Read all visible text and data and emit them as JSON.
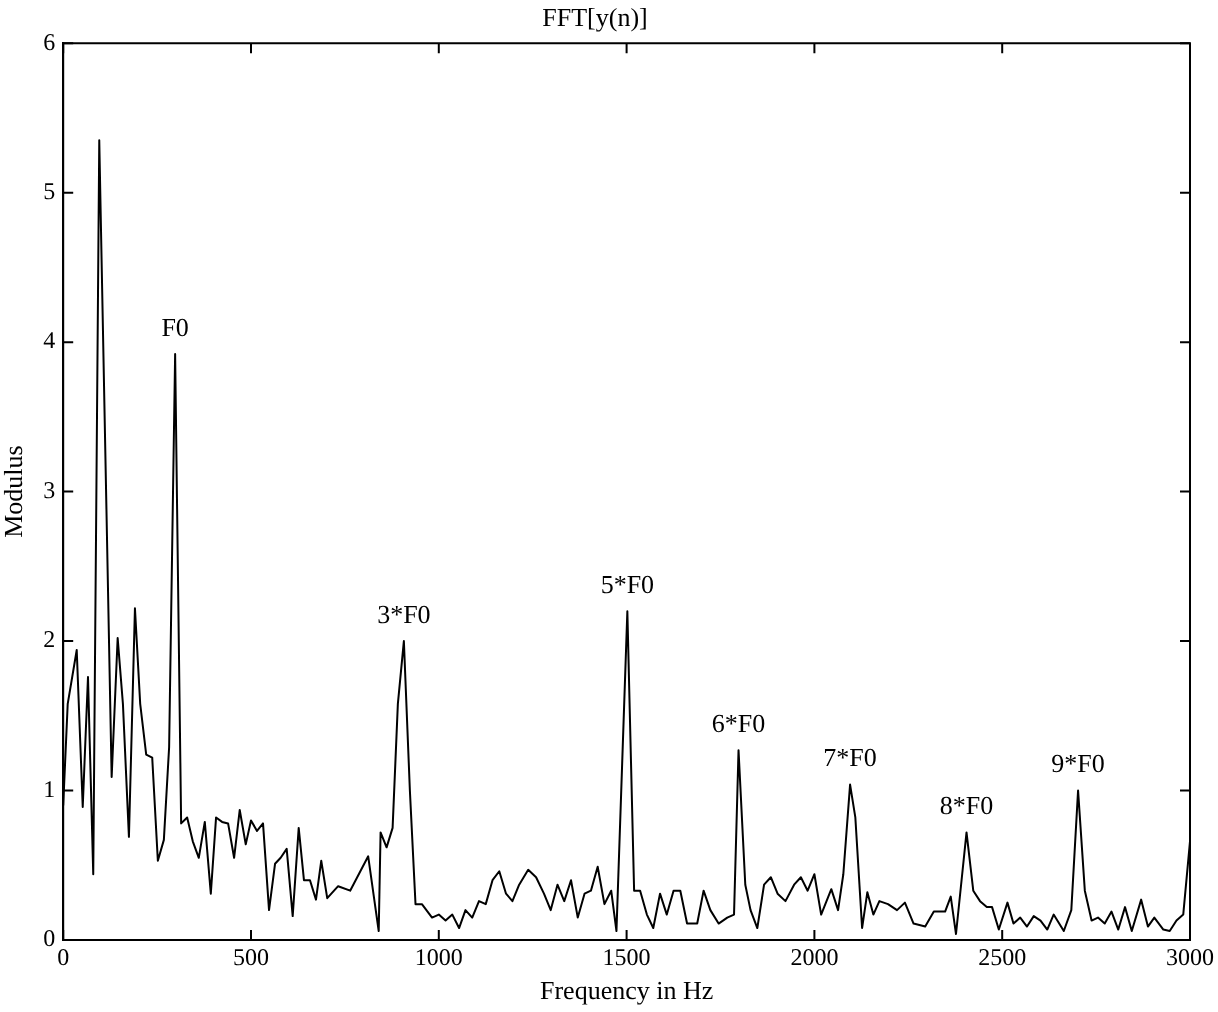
{
  "chart_data": {
    "type": "line",
    "title": "FFT[y(n)]",
    "xlabel": "Frequency in Hz",
    "ylabel": "Modulus",
    "xlim": [
      0,
      3000
    ],
    "xticks": [
      0,
      500,
      1000,
      1500,
      2000,
      2500,
      3000
    ],
    "ylim": [
      0,
      6
    ],
    "yticks": [
      0,
      1,
      2,
      3,
      4,
      5,
      6
    ],
    "grid": false,
    "legend": false,
    "marker": "none",
    "line_style": "solid",
    "series": [
      {
        "color": "#000000",
        "x": [
          0,
          12,
          36,
          52,
          66,
          80,
          96,
          129,
          145,
          159,
          175,
          191,
          205,
          221,
          237,
          252,
          268,
          282,
          298,
          314,
          330,
          345,
          361,
          377,
          393,
          407,
          423,
          439,
          455,
          470,
          486,
          500,
          516,
          532,
          548,
          564,
          579,
          595,
          611,
          627,
          641,
          657,
          673,
          687,
          703,
          732,
          764,
          812,
          840,
          845,
          861,
          877,
          891,
          907,
          923,
          938,
          955,
          982,
          1000,
          1018,
          1036,
          1054,
          1071,
          1089,
          1107,
          1125,
          1143,
          1161,
          1179,
          1196,
          1214,
          1238,
          1259,
          1280,
          1298,
          1316,
          1334,
          1352,
          1370,
          1388,
          1405,
          1423,
          1441,
          1459,
          1473,
          1502,
          1520,
          1536,
          1554,
          1571,
          1589,
          1607,
          1625,
          1643,
          1661,
          1688,
          1705,
          1723,
          1745,
          1768,
          1786,
          1798,
          1816,
          1830,
          1848,
          1866,
          1884,
          1902,
          1923,
          1946,
          1964,
          1982,
          2000,
          2018,
          2045,
          2063,
          2077,
          2095,
          2109,
          2127,
          2141,
          2157,
          2173,
          2196,
          2220,
          2241,
          2264,
          2295,
          2318,
          2348,
          2363,
          2377,
          2405,
          2423,
          2441,
          2459,
          2473,
          2491,
          2514,
          2530,
          2548,
          2566,
          2584,
          2602,
          2620,
          2637,
          2664,
          2684,
          2702,
          2720,
          2738,
          2755,
          2773,
          2791,
          2809,
          2827,
          2845,
          2870,
          2888,
          2905,
          2929,
          2946,
          2964,
          2982,
          3000
        ],
        "values": [
          0.9,
          1.58,
          1.94,
          0.89,
          1.76,
          0.44,
          5.35,
          1.09,
          2.02,
          1.58,
          0.69,
          2.22,
          1.58,
          1.24,
          1.22,
          0.53,
          0.67,
          1.29,
          3.92,
          0.78,
          0.82,
          0.66,
          0.55,
          0.79,
          0.31,
          0.82,
          0.79,
          0.78,
          0.55,
          0.87,
          0.64,
          0.8,
          0.73,
          0.78,
          0.2,
          0.51,
          0.55,
          0.61,
          0.16,
          0.75,
          0.4,
          0.4,
          0.27,
          0.53,
          0.28,
          0.36,
          0.33,
          0.56,
          0.06,
          0.72,
          0.62,
          0.75,
          1.58,
          2.0,
          1.0,
          0.24,
          0.24,
          0.15,
          0.17,
          0.13,
          0.17,
          0.08,
          0.2,
          0.15,
          0.26,
          0.24,
          0.4,
          0.46,
          0.31,
          0.26,
          0.37,
          0.47,
          0.42,
          0.31,
          0.2,
          0.37,
          0.26,
          0.4,
          0.15,
          0.31,
          0.33,
          0.49,
          0.24,
          0.33,
          0.06,
          2.2,
          0.33,
          0.33,
          0.17,
          0.08,
          0.31,
          0.17,
          0.33,
          0.33,
          0.11,
          0.11,
          0.33,
          0.2,
          0.11,
          0.15,
          0.17,
          1.27,
          0.37,
          0.2,
          0.08,
          0.37,
          0.42,
          0.31,
          0.26,
          0.37,
          0.42,
          0.33,
          0.44,
          0.17,
          0.34,
          0.2,
          0.44,
          1.04,
          0.82,
          0.08,
          0.32,
          0.17,
          0.26,
          0.24,
          0.2,
          0.25,
          0.11,
          0.09,
          0.19,
          0.19,
          0.29,
          0.04,
          0.72,
          0.33,
          0.26,
          0.22,
          0.22,
          0.07,
          0.25,
          0.11,
          0.15,
          0.09,
          0.16,
          0.13,
          0.07,
          0.17,
          0.06,
          0.2,
          1.0,
          0.33,
          0.13,
          0.15,
          0.11,
          0.19,
          0.07,
          0.22,
          0.06,
          0.27,
          0.09,
          0.15,
          0.07,
          0.06,
          0.13,
          0.17,
          0.66
        ]
      }
    ],
    "annotations": [
      {
        "text": "F0",
        "x": 298,
        "y": 3.92
      },
      {
        "text": "3*F0",
        "x": 907,
        "y": 2.0
      },
      {
        "text": "5*F0",
        "x": 1502,
        "y": 2.2
      },
      {
        "text": "6*F0",
        "x": 1798,
        "y": 1.27
      },
      {
        "text": "7*F0",
        "x": 2095,
        "y": 1.04
      },
      {
        "text": "8*F0",
        "x": 2405,
        "y": 0.72
      },
      {
        "text": "9*F0",
        "x": 2702,
        "y": 1.0
      }
    ]
  }
}
